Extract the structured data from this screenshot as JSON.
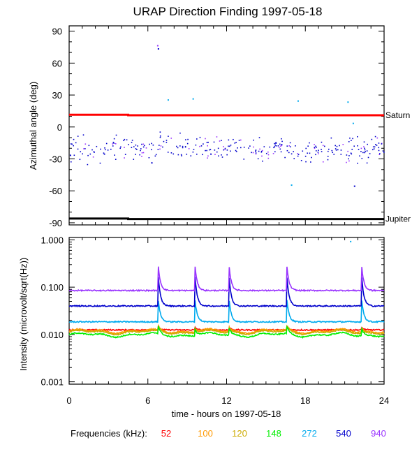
{
  "chart_data": [
    {
      "type": "scatter",
      "title": "URAP Direction Finding  1997-05-18",
      "ylabel": "Azimuthal angle (deg)",
      "xlim": [
        0,
        24
      ],
      "ylim": [
        -92,
        95
      ],
      "x_ticks": [
        "0",
        "6",
        "12",
        "18",
        "24"
      ],
      "y_ticks": [
        "90",
        "60",
        "30",
        "0",
        "-30",
        "-60",
        "-90"
      ],
      "y_tick_values": [
        90,
        60,
        30,
        0,
        -30,
        -60,
        -90
      ],
      "reference_lines": [
        {
          "label": "Saturn",
          "color": "#ff0000",
          "x": [
            0,
            4.5,
            4.5,
            24
          ],
          "y": [
            11.5,
            11.5,
            11,
            11
          ]
        },
        {
          "label": "Jupiter",
          "color": "#000000",
          "x": [
            0,
            4.5,
            4.5,
            24
          ],
          "y": [
            -86,
            -86,
            -86.5,
            -86.5
          ]
        }
      ],
      "outlier_points": [
        {
          "x": 6.7,
          "y": 77,
          "color": "#9933ff"
        },
        {
          "x": 6.75,
          "y": 74,
          "color": "#0000cc"
        },
        {
          "x": 7.5,
          "y": 26,
          "color": "#00aaee"
        },
        {
          "x": 9.4,
          "y": 27,
          "color": "#00aaee"
        },
        {
          "x": 17.4,
          "y": 25,
          "color": "#00aaee"
        },
        {
          "x": 21.2,
          "y": 24,
          "color": "#00aaee"
        },
        {
          "x": 21.6,
          "y": 4,
          "color": "#00aaee"
        },
        {
          "x": 16.9,
          "y": -54,
          "color": "#00aaee"
        },
        {
          "x": 21.7,
          "y": -55,
          "color": "#0000cc"
        }
      ],
      "scatter_band": {
        "x_range": [
          0,
          24
        ],
        "y_center": -20,
        "y_spread": 10,
        "colors": [
          "#0000cc",
          "#9933ff"
        ]
      }
    },
    {
      "type": "line",
      "ylabel": "Intensity (microvolt/sqrt(Hz))",
      "xlabel": "time - hours on 1997-05-18",
      "xlim": [
        0,
        24
      ],
      "ylim_log10": [
        -3.05,
        0.05
      ],
      "x_ticks": [
        "0",
        "6",
        "12",
        "18",
        "24"
      ],
      "y_ticks": [
        "1.000",
        "0.100",
        "0.010",
        "0.001"
      ],
      "y_tick_values": [
        1.0,
        0.1,
        0.01,
        0.001
      ],
      "peaks": [
        6.8,
        9.6,
        12.2,
        16.6,
        22.3
      ],
      "series": [
        {
          "name": "52",
          "color": "#ff0000",
          "baseline": 0.0125
        },
        {
          "name": "100",
          "color": "#ff9900",
          "baseline": 0.0118
        },
        {
          "name": "120",
          "color": "#ccaa00",
          "baseline": 0.0112
        },
        {
          "name": "148",
          "color": "#00ee00",
          "baseline": 0.0098
        },
        {
          "name": "272",
          "color": "#00aaee",
          "baseline": 0.0185
        },
        {
          "name": "540",
          "color": "#0000cc",
          "baseline": 0.04
        },
        {
          "name": "940",
          "color": "#9933ff",
          "baseline": 0.085
        }
      ],
      "outlier_points": [
        {
          "x": 21.4,
          "y": 0.95,
          "color": "#00aaee"
        }
      ]
    }
  ],
  "legend": {
    "label": "Frequencies (kHz):",
    "items": [
      {
        "text": "52",
        "color": "#ff0000"
      },
      {
        "text": "100",
        "color": "#ff9900"
      },
      {
        "text": "120",
        "color": "#ccaa00"
      },
      {
        "text": "148",
        "color": "#00ee00"
      },
      {
        "text": "272",
        "color": "#00aaee"
      },
      {
        "text": "540",
        "color": "#0000cc"
      },
      {
        "text": "940",
        "color": "#9933ff"
      }
    ]
  }
}
